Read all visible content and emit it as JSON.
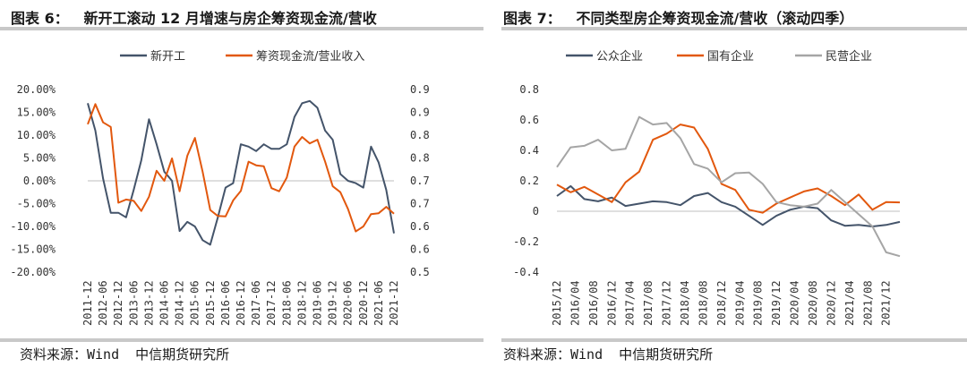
{
  "left": {
    "fig_label": "图表 6：",
    "title": "新开工滚动 12 月增速与房企筹资现金流/营收",
    "source": "资料来源：Wind  中信期货研究所"
  },
  "right": {
    "fig_label": "图表 7：",
    "title": "不同类型房企筹资现金流/营收（滚动四季）",
    "source": "资料来源：Wind  中信期货研究所"
  },
  "colors": {
    "dark": "#44546a",
    "orange": "#e2580e",
    "gray": "#a5a5a5"
  },
  "chart_data": [
    {
      "type": "line",
      "categories": [
        "2011-12",
        "2012-03",
        "2012-06",
        "2012-09",
        "2012-12",
        "2013-03",
        "2013-06",
        "2013-09",
        "2013-12",
        "2014-03",
        "2014-06",
        "2014-09",
        "2014-12",
        "2015-03",
        "2015-06",
        "2015-09",
        "2015-12",
        "2016-03",
        "2016-06",
        "2016-09",
        "2016-12",
        "2017-03",
        "2017-06",
        "2017-09",
        "2017-12",
        "2018-03",
        "2018-06",
        "2018-09",
        "2018-12",
        "2019-03",
        "2019-06",
        "2019-09",
        "2019-12",
        "2020-03",
        "2020-06",
        "2020-09",
        "2020-12",
        "2021-03",
        "2021-06",
        "2021-09",
        "2021-12"
      ],
      "x_tick_labels": [
        "2011-12",
        "2012-06",
        "2012-12",
        "2013-06",
        "2013-12",
        "2014-06",
        "2014-12",
        "2015-06",
        "2015-12",
        "2016-06",
        "2016-12",
        "2017-06",
        "2017-12",
        "2018-06",
        "2018-12",
        "2019-06",
        "2019-12",
        "2020-06",
        "2020-12",
        "2021-06",
        "2021-12"
      ],
      "y_left_ticks": [
        "20.00%",
        "15.00%",
        "10.00%",
        "5.00%",
        "0.00%",
        "-5.00%",
        "-10.00%",
        "-15.00%",
        "-20.00%"
      ],
      "y_right_ticks": [
        "0.9",
        "0.9",
        "0.8",
        "0.8",
        "0.7",
        "0.7",
        "0.6",
        "0.6",
        "0.5"
      ],
      "ylim_left": [
        -20,
        20
      ],
      "ylim_right": [
        0.5,
        0.9
      ],
      "legend_position": "top",
      "series": [
        {
          "name": "新开工",
          "axis": "left",
          "color": "#44546a",
          "values": [
            17,
            11,
            0.5,
            -7,
            -7,
            -8,
            -2,
            4.5,
            13.5,
            8,
            2,
            0,
            -11,
            -9,
            -10,
            -13,
            -14,
            -8,
            -1.5,
            -0.5,
            8,
            7.5,
            6.5,
            8,
            7,
            7,
            8,
            14,
            17,
            17.5,
            16,
            11,
            9,
            1.5,
            0,
            -0.5,
            -1.5,
            7.5,
            4,
            -2,
            -11.5
          ]
        },
        {
          "name": "筹资现金流/营业收入",
          "axis": "right",
          "color": "#e2580e",
          "values": [
            0.824,
            0.868,
            0.828,
            0.818,
            0.652,
            0.659,
            0.656,
            0.634,
            0.665,
            0.722,
            0.7,
            0.749,
            0.677,
            0.755,
            0.794,
            0.72,
            0.636,
            0.623,
            0.622,
            0.657,
            0.678,
            0.742,
            0.734,
            0.732,
            0.684,
            0.677,
            0.707,
            0.775,
            0.796,
            0.782,
            0.79,
            0.742,
            0.688,
            0.675,
            0.638,
            0.589,
            0.6,
            0.627,
            0.629,
            0.643,
            0.628
          ]
        }
      ]
    },
    {
      "type": "line",
      "categories": [
        "2015/12",
        "2016/03",
        "2016/06",
        "2016/09",
        "2016/12",
        "2017/03",
        "2017/06",
        "2017/09",
        "2017/12",
        "2018/03",
        "2018/06",
        "2018/09",
        "2018/12",
        "2019/03",
        "2019/06",
        "2019/09",
        "2019/12",
        "2020/03",
        "2020/06",
        "2020/09",
        "2020/12",
        "2021/03",
        "2021/06",
        "2021/09",
        "2021/12",
        "2022/03"
      ],
      "x_tick_labels": [
        "2015/12",
        "2016/04",
        "2016/08",
        "2016/12",
        "2017/04",
        "2017/08",
        "2017/12",
        "2018/04",
        "2018/08",
        "2018/12",
        "2019/04",
        "2019/08",
        "2019/12",
        "2020/04",
        "2020/08",
        "2020/12",
        "2021/04",
        "2021/08",
        "2021/12"
      ],
      "y_ticks": [
        "0.8",
        "0.6",
        "0.4",
        "0.2",
        "0",
        "-0.2",
        "-0.4"
      ],
      "ylim": [
        -0.4,
        0.8
      ],
      "legend_position": "top",
      "series": [
        {
          "name": "公众企业",
          "color": "#44546a",
          "values": [
            0.1,
            0.165,
            0.08,
            0.065,
            0.09,
            0.035,
            0.05,
            0.065,
            0.06,
            0.04,
            0.1,
            0.12,
            0.06,
            0.03,
            -0.03,
            -0.09,
            -0.03,
            0.01,
            0.03,
            0.02,
            -0.06,
            -0.095,
            -0.09,
            -0.1,
            -0.09,
            -0.07
          ]
        },
        {
          "name": "国有企业",
          "color": "#e2580e",
          "values": [
            0.175,
            0.125,
            0.16,
            0.11,
            0.06,
            0.19,
            0.26,
            0.47,
            0.51,
            0.57,
            0.55,
            0.41,
            0.18,
            0.14,
            0.01,
            -0.01,
            0.05,
            0.09,
            0.13,
            0.15,
            0.1,
            0.04,
            0.11,
            0.01,
            0.06,
            0.058
          ]
        },
        {
          "name": "民营企业",
          "color": "#a5a5a5",
          "values": [
            0.29,
            0.42,
            0.43,
            0.47,
            0.4,
            0.41,
            0.62,
            0.57,
            0.58,
            0.48,
            0.31,
            0.28,
            0.19,
            0.25,
            0.255,
            0.18,
            0.06,
            0.04,
            0.03,
            0.05,
            0.14,
            0.06,
            -0.02,
            -0.1,
            -0.27,
            -0.295
          ]
        }
      ]
    }
  ]
}
